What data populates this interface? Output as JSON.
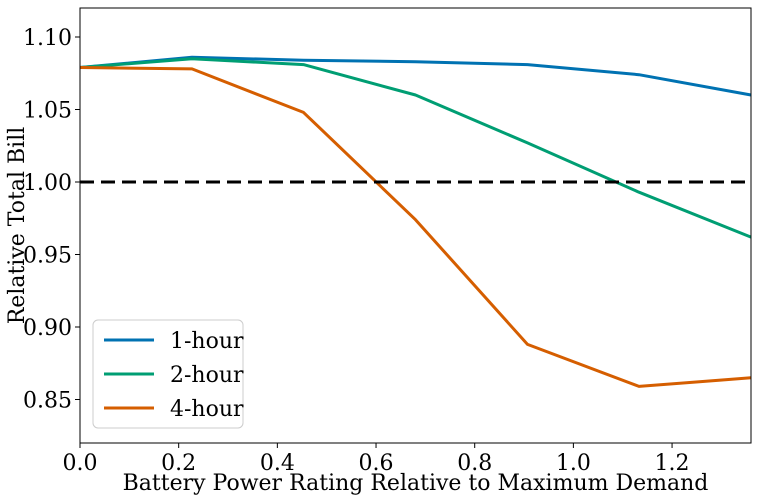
{
  "chart_data": {
    "type": "line",
    "title": "",
    "xlabel": "Battery Power Rating Relative to Maximum Demand",
    "ylabel": "Relative Total Bill",
    "xlim": [
      0.0,
      1.36
    ],
    "ylim": [
      0.82,
      1.12
    ],
    "x_ticks": [
      "0.0",
      "0.2",
      "0.4",
      "0.6",
      "0.8",
      "1.0",
      "1.2"
    ],
    "y_ticks": [
      "0.85",
      "0.90",
      "0.95",
      "1.00",
      "1.05",
      "1.10"
    ],
    "grid": false,
    "legend_position": "lower-left",
    "reference_line": {
      "y": 1.0,
      "style": "dashed",
      "color": "#000000"
    },
    "series": [
      {
        "name": "1-hour",
        "color": "#0072b2",
        "x": [
          0.0,
          0.227,
          0.453,
          0.68,
          0.907,
          1.133,
          1.36
        ],
        "values": [
          1.079,
          1.086,
          1.084,
          1.083,
          1.081,
          1.074,
          1.06
        ]
      },
      {
        "name": "2-hour",
        "color": "#009e73",
        "x": [
          0.0,
          0.227,
          0.453,
          0.68,
          0.907,
          1.133,
          1.36
        ],
        "values": [
          1.079,
          1.085,
          1.081,
          1.06,
          1.027,
          0.993,
          0.962
        ]
      },
      {
        "name": "4-hour",
        "color": "#d55e00",
        "x": [
          0.0,
          0.227,
          0.453,
          0.68,
          0.907,
          1.133,
          1.36
        ],
        "values": [
          1.079,
          1.078,
          1.048,
          0.974,
          0.888,
          0.859,
          0.865
        ]
      }
    ]
  }
}
